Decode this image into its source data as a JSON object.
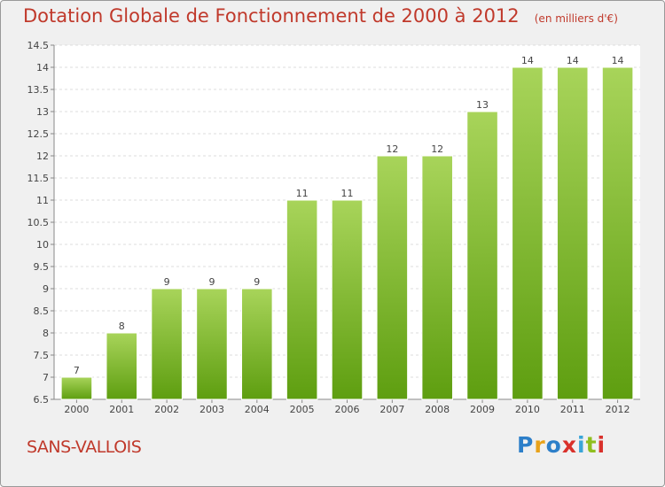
{
  "header": {
    "title": "Dotation Globale de Fonctionnement de 2000 à 2012",
    "unit_note": "(en milliers d'€)"
  },
  "footer": {
    "commune": "SANS-VALLOIS",
    "logo_text": "Proxiti"
  },
  "colors": {
    "title": "#c0392b",
    "bar_top": "#a8d45a",
    "bar_bottom": "#5e9e10",
    "logo_letters": [
      "#2d7fc9",
      "#e8a21a",
      "#2d7fc9",
      "#d9312b",
      "#3aa5d8",
      "#8fbf1f",
      "#d9312b"
    ]
  },
  "chart_data": {
    "type": "bar",
    "categories": [
      "2000",
      "2001",
      "2002",
      "2003",
      "2004",
      "2005",
      "2006",
      "2007",
      "2008",
      "2009",
      "2010",
      "2011",
      "2012"
    ],
    "values": [
      7,
      8,
      9,
      9,
      9,
      11,
      11,
      12,
      12,
      13,
      14,
      14,
      14
    ],
    "data_labels": [
      "7",
      "8",
      "9",
      "9",
      "9",
      "11",
      "11",
      "12",
      "12",
      "13",
      "14",
      "14",
      "14"
    ],
    "ylim": [
      6.5,
      14.5
    ],
    "yticks": [
      "6.5",
      "7",
      "7.5",
      "8",
      "8.5",
      "9",
      "9.5",
      "10",
      "10.5",
      "11",
      "11.5",
      "12",
      "12.5",
      "13",
      "13.5",
      "14",
      "14.5"
    ],
    "grid": true,
    "xlabel": "",
    "ylabel": ""
  }
}
